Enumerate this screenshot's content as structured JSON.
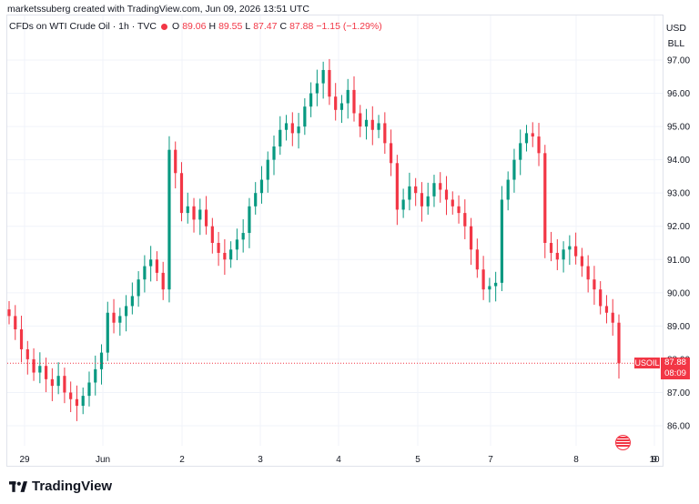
{
  "credit": "marketssuberg created with TradingView.com, Jun 09, 2026 13:51 UTC",
  "legend": {
    "symbol": "CFDs on WTI Crude Oil · 1h · TVC",
    "o_label": "O",
    "o": "89.06",
    "h_label": "H",
    "h": "89.55",
    "l_label": "L",
    "l": "87.47",
    "c_label": "C",
    "c": "87.88",
    "change": "−1.15 (−1.29%)"
  },
  "currency": "USD",
  "unit": "BLL",
  "price_tag": {
    "label": "USOIL",
    "value": "87.88",
    "countdown": "08:09"
  },
  "footer": {
    "brand": "TradingView"
  },
  "colors": {
    "up": "#089981",
    "down": "#f23645",
    "grid": "#f0f3fa",
    "text": "#131722"
  },
  "icons": {
    "flag": "us-flag-icon",
    "logo": "tradingview-logo-icon"
  },
  "chart_data": {
    "type": "candlestick",
    "y_ticks": [
      86,
      87,
      88,
      89,
      90,
      91,
      92,
      93,
      94,
      95,
      96,
      97
    ],
    "y_tick_labels": [
      "86.00",
      "87.00",
      "88.00",
      "89.00",
      "90.00",
      "91.00",
      "92.00",
      "93.00",
      "94.00",
      "95.00",
      "96.00",
      "97.00"
    ],
    "ylim": [
      85.5,
      97.5
    ],
    "x_ticks": [
      "29",
      "Jun",
      "2",
      "3",
      "4",
      "5",
      "7",
      "8",
      "9",
      "10"
    ],
    "last_price": 87.88,
    "grid": true,
    "closes": [
      89.3,
      88.9,
      88.3,
      88.0,
      87.6,
      87.8,
      87.4,
      87.2,
      87.5,
      87.0,
      86.8,
      86.6,
      86.9,
      87.3,
      87.7,
      88.2,
      89.4,
      89.1,
      89.3,
      89.6,
      89.9,
      90.4,
      90.8,
      91.0,
      90.6,
      90.1,
      94.3,
      93.6,
      92.4,
      92.6,
      92.2,
      92.5,
      92.0,
      91.5,
      91.2,
      91.0,
      91.3,
      91.6,
      91.8,
      92.6,
      93.0,
      93.4,
      94.0,
      94.4,
      94.9,
      95.1,
      94.8,
      95.0,
      95.6,
      96.0,
      96.3,
      96.7,
      95.9,
      95.5,
      95.7,
      96.1,
      95.4,
      95.0,
      95.2,
      94.9,
      95.1,
      94.5,
      93.9,
      92.5,
      92.8,
      93.2,
      93.0,
      92.6,
      92.9,
      93.3,
      93.1,
      92.8,
      92.6,
      92.4,
      92.0,
      91.3,
      90.7,
      90.1,
      90.2,
      90.3,
      92.8,
      93.4,
      94.0,
      94.5,
      94.8,
      94.7,
      94.2,
      91.5,
      91.2,
      91.0,
      91.3,
      91.4,
      91.1,
      90.8,
      90.4,
      90.1,
      89.6,
      89.4,
      89.1,
      87.88
    ]
  }
}
